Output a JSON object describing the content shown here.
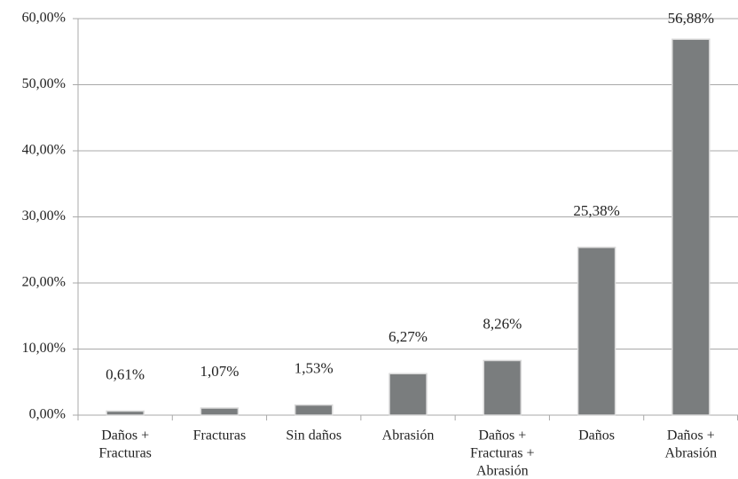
{
  "chart_data": {
    "type": "bar",
    "categories": [
      [
        "Daños +",
        "Fracturas"
      ],
      [
        "Fracturas"
      ],
      [
        "Sin daños"
      ],
      [
        "Abrasión"
      ],
      [
        "Daños +",
        "Fracturas +",
        "Abrasión"
      ],
      [
        "Daños"
      ],
      [
        "Daños +",
        "Abrasión"
      ]
    ],
    "values": [
      0.61,
      1.07,
      1.53,
      6.27,
      8.26,
      25.38,
      56.88
    ],
    "value_labels": [
      "0,61%",
      "1,07%",
      "1,53%",
      "6,27%",
      "8,26%",
      "25,38%",
      "56,88%"
    ],
    "color": "#7a7d7e",
    "ylim": [
      0,
      60
    ],
    "yticks": [
      {
        "value": 0,
        "label": "0,00%"
      },
      {
        "value": 10,
        "label": "10,00%"
      },
      {
        "value": 20,
        "label": "20,00%"
      },
      {
        "value": 30,
        "label": "30,00%"
      },
      {
        "value": 40,
        "label": "40,00%"
      },
      {
        "value": 50,
        "label": "50,00%"
      },
      {
        "value": 60,
        "label": "60,00%"
      }
    ],
    "grid": true
  }
}
